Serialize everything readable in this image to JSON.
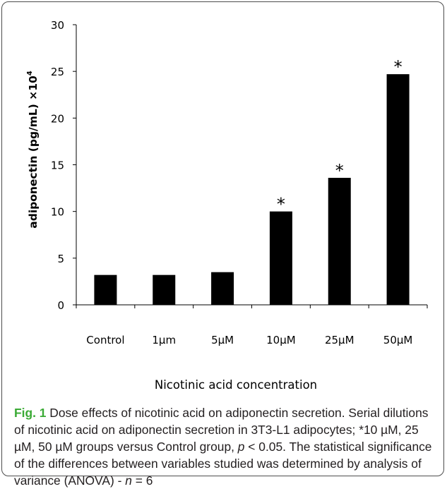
{
  "chart_data": {
    "type": "bar",
    "categories": [
      "Control",
      "1µm",
      "5µM",
      "10µM",
      "25µM",
      "50µM"
    ],
    "values": [
      3.2,
      3.2,
      3.5,
      10.0,
      13.6,
      24.7
    ],
    "significance": [
      "",
      "",
      "",
      "*",
      "*",
      "*"
    ],
    "xlabel": "Nicotinic acid concentration",
    "ylabel": "adiponectin (pg/mL) ×10",
    "ylabel_sup": "4",
    "yticks": [
      0,
      5,
      10,
      15,
      20,
      25,
      30
    ],
    "ylim": [
      0,
      30
    ],
    "bar_color": "#000000",
    "grid": false
  },
  "caption": {
    "label": "Fig. 1",
    "text_1": " Dose effects of nicotinic acid on adiponectin secretion. Serial dilutions of nicotinic acid on adiponectin secretion in 3T3-L1 adipocytes; *10 µM, 25 µM, 50 µM groups versus Control group, ",
    "p_symbol": "p",
    "text_2": " < 0.05. The statistical significance of the differences between variables studied was determined by analysis of variance (ANOVA) - ",
    "n_symbol": "n",
    "text_3": " = 6"
  }
}
